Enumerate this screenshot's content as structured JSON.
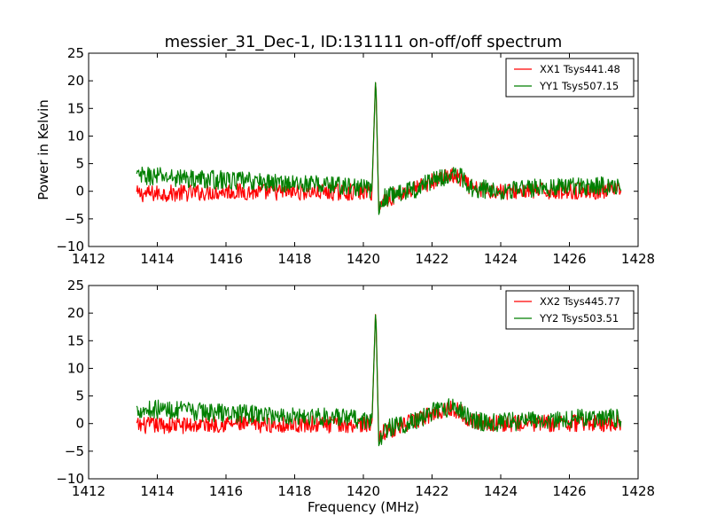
{
  "chart_data": [
    {
      "type": "line",
      "title": "messier_31_Dec-1, ID:131111 on-off/off spectrum",
      "xlabel": "",
      "ylabel": "Power in Kelvin",
      "xlim": [
        1412,
        1428
      ],
      "ylim": [
        -10,
        25
      ],
      "xticks": [
        "1412",
        "1414",
        "1416",
        "1418",
        "1420",
        "1422",
        "1424",
        "1426",
        "1428"
      ],
      "yticks": [
        "−10",
        "−5",
        "0",
        "5",
        "10",
        "15",
        "20",
        "25"
      ],
      "grid": false,
      "legend_position": "top-right",
      "x": [
        1413.4,
        1414,
        1415,
        1416,
        1417,
        1418,
        1419,
        1420,
        1420.25,
        1420.36,
        1420.45,
        1420.6,
        1421,
        1421.5,
        1422,
        1422.5,
        1422.8,
        1423.2,
        1424,
        1425,
        1426,
        1427,
        1427.5
      ],
      "series": [
        {
          "name": "XX1 Tsys441.48",
          "color": "#ff0000",
          "noise": 0.9,
          "values": [
            -0.5,
            -0.4,
            -0.3,
            0.0,
            -0.2,
            -0.1,
            -0.2,
            -0.1,
            -0.2,
            21.2,
            -3.5,
            -1.6,
            -0.6,
            0.4,
            1.8,
            2.8,
            2.3,
            0.3,
            0.0,
            0.0,
            0.1,
            0.0,
            0.0
          ]
        },
        {
          "name": "YY1 Tsys507.15",
          "color": "#007f00",
          "noise": 1.0,
          "values": [
            2.7,
            2.7,
            2.3,
            2.0,
            1.7,
            1.4,
            1.2,
            0.6,
            0.3,
            21.2,
            -4.2,
            -1.2,
            -0.3,
            0.4,
            2.0,
            2.9,
            2.8,
            0.5,
            0.2,
            0.6,
            0.9,
            1.0,
            1.0
          ]
        }
      ]
    },
    {
      "type": "line",
      "title": "",
      "xlabel": "Frequency (MHz)",
      "ylabel": "",
      "xlim": [
        1412,
        1428
      ],
      "ylim": [
        -10,
        25
      ],
      "xticks": [
        "1412",
        "1414",
        "1416",
        "1418",
        "1420",
        "1422",
        "1424",
        "1426",
        "1428"
      ],
      "yticks": [
        "−10",
        "−5",
        "0",
        "5",
        "10",
        "15",
        "20",
        "25"
      ],
      "grid": false,
      "legend_position": "top-right",
      "x": [
        1413.4,
        1414,
        1415,
        1416,
        1417,
        1418,
        1419,
        1420,
        1420.25,
        1420.36,
        1420.45,
        1420.6,
        1421,
        1421.5,
        1422,
        1422.5,
        1422.8,
        1423.2,
        1424,
        1425,
        1426,
        1427,
        1427.5
      ],
      "series": [
        {
          "name": "XX2 Tsys445.77",
          "color": "#ff0000",
          "noise": 0.9,
          "values": [
            -0.4,
            -0.3,
            -0.3,
            0.0,
            -0.2,
            -0.1,
            -0.2,
            -0.1,
            -0.2,
            21.3,
            -3.3,
            -1.5,
            -0.6,
            0.4,
            1.8,
            2.8,
            2.3,
            0.3,
            0.0,
            0.0,
            0.1,
            0.0,
            0.0
          ]
        },
        {
          "name": "YY2 Tsys503.51",
          "color": "#007f00",
          "noise": 1.0,
          "values": [
            2.6,
            2.6,
            2.2,
            1.9,
            1.6,
            1.4,
            1.2,
            0.6,
            0.3,
            21.2,
            -4.0,
            -1.2,
            -0.3,
            0.4,
            2.0,
            2.9,
            2.8,
            0.5,
            0.2,
            0.6,
            0.9,
            1.0,
            1.0
          ]
        }
      ]
    }
  ]
}
